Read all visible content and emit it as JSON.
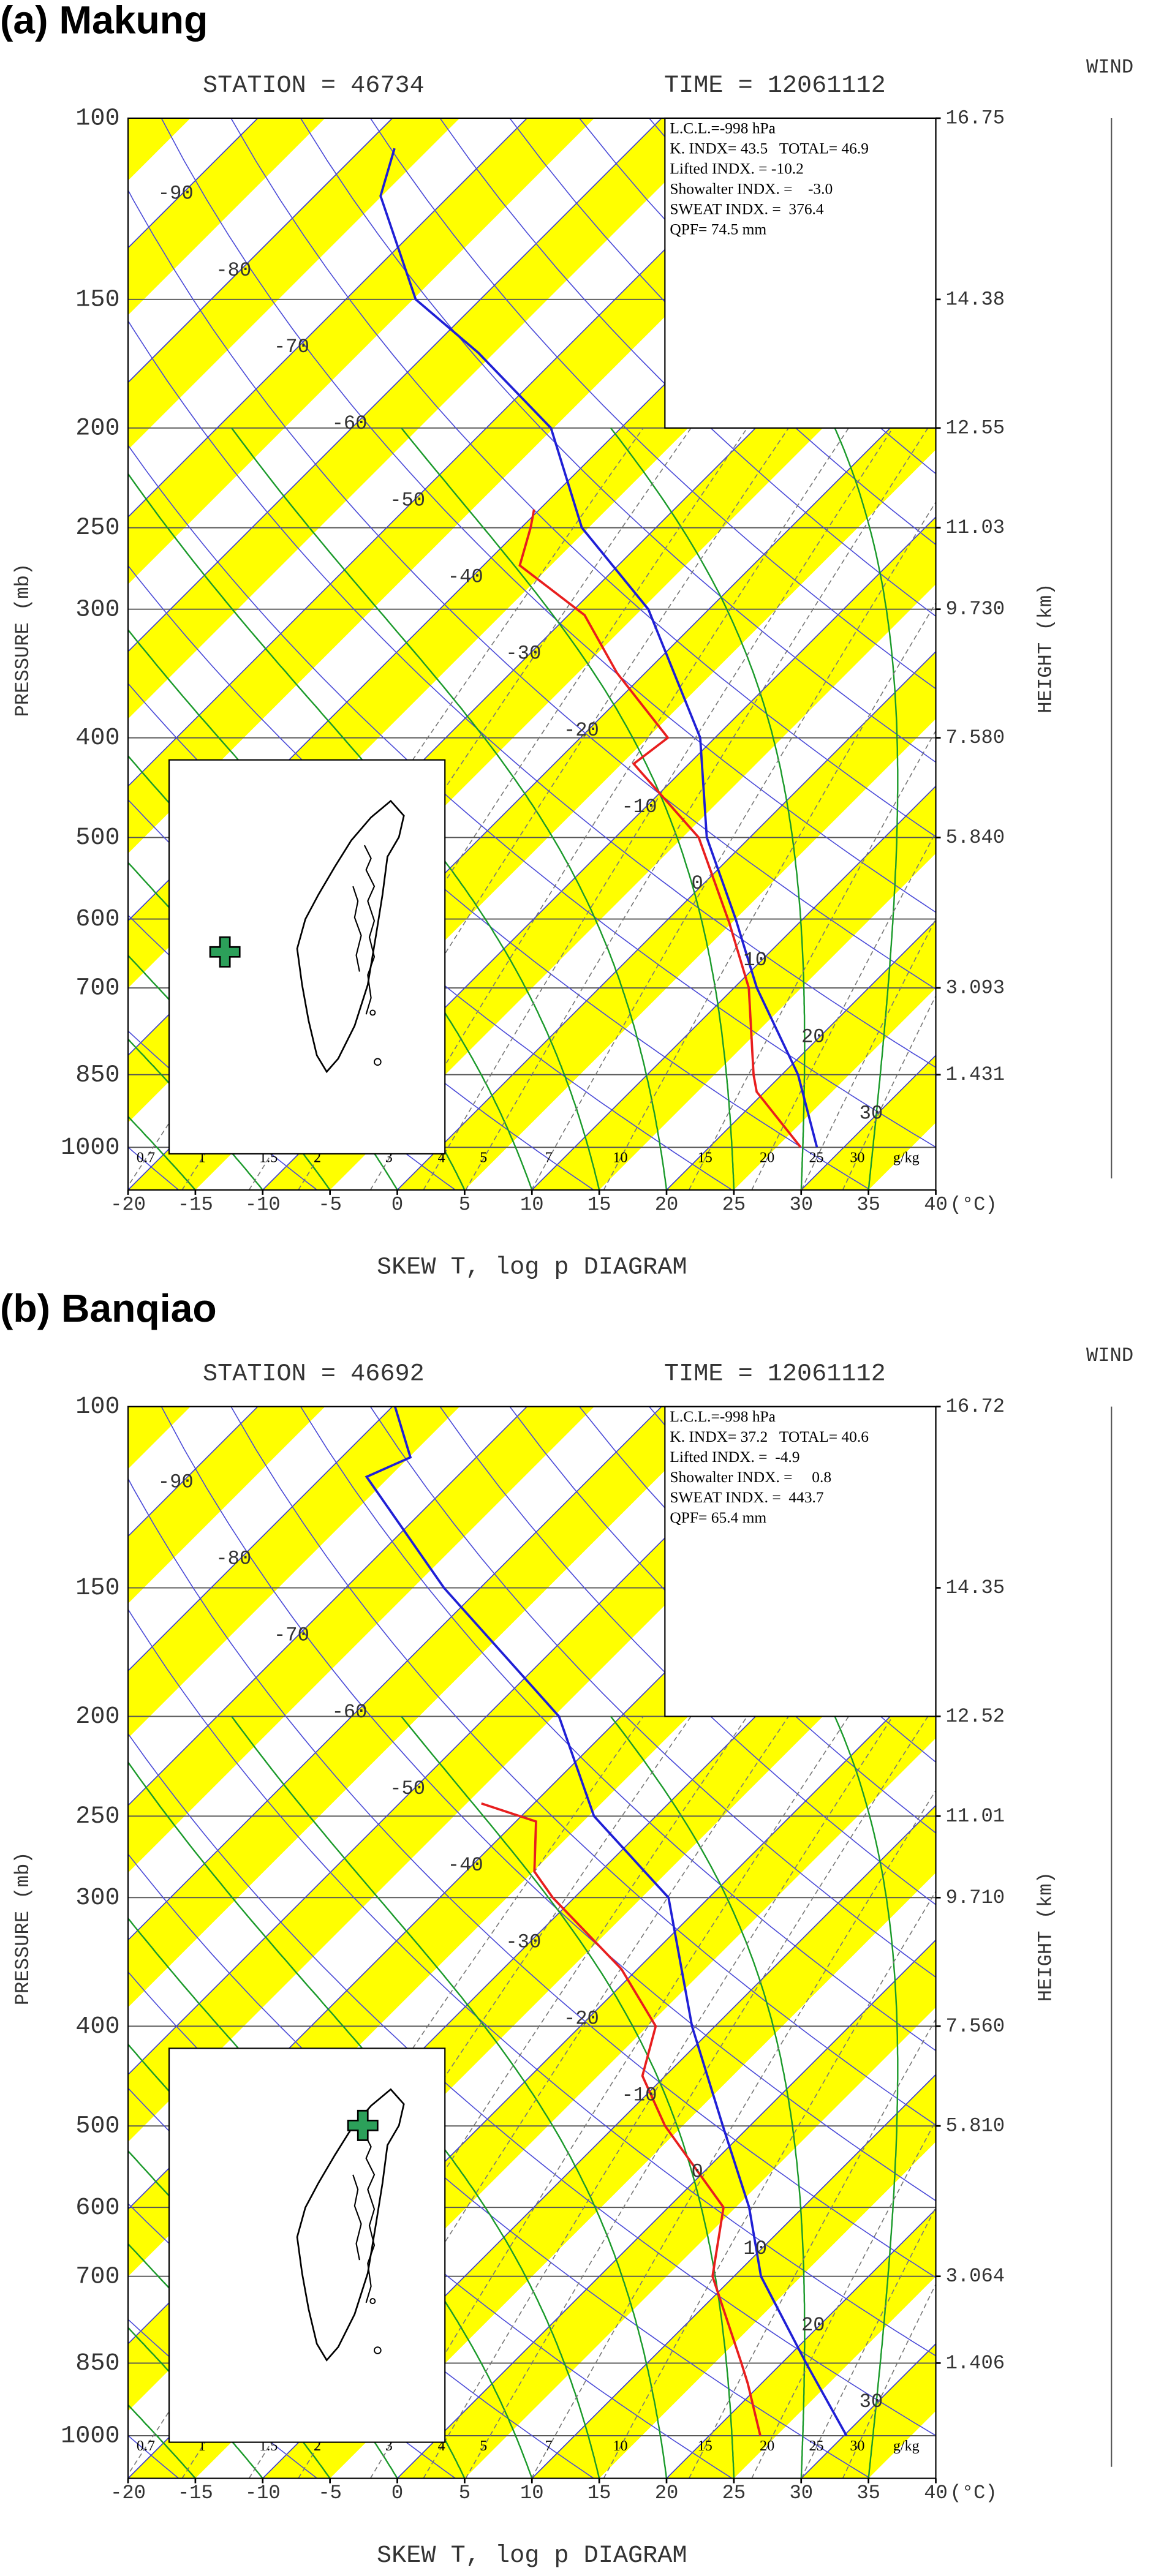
{
  "chart_data": [
    {
      "type": "skew-t",
      "title": "(a) Makung",
      "station_label": "STATION = 46734",
      "time_label": "TIME = 12061112",
      "xlabel": "SKEW T, log p DIAGRAM",
      "ylabel": "PRESSURE (mb)",
      "y2label": "HEIGHT (km)",
      "wind_label": "WIND",
      "x_unit": "(°C)",
      "mixing_ratio_unit": "g/kg",
      "log_y": true,
      "xlim": [
        -20,
        40
      ],
      "xticks": [
        -20,
        -15,
        -10,
        -5,
        0,
        5,
        10,
        15,
        20,
        25,
        30,
        35,
        40
      ],
      "ylim": [
        1100,
        100
      ],
      "yticks": [
        100,
        150,
        200,
        250,
        300,
        400,
        500,
        600,
        700,
        850,
        1000
      ],
      "height_ticks": [
        {
          "value": 100,
          "label": "16.75"
        },
        {
          "value": 150,
          "label": "14.38"
        },
        {
          "value": 200,
          "label": "12.55"
        },
        {
          "value": 250,
          "label": "11.03"
        },
        {
          "value": 300,
          "label": "9.730"
        },
        {
          "value": 400,
          "label": "7.580"
        },
        {
          "value": 500,
          "label": "5.840"
        },
        {
          "value": 700,
          "label": "3.093"
        },
        {
          "value": 850,
          "label": "1.431"
        }
      ],
      "isotherm_labels": [
        -90,
        -80,
        -70,
        -60,
        -50,
        -40,
        -30,
        -20,
        -10,
        0,
        10,
        20,
        30
      ],
      "mixing_ratios": [
        0.7,
        1,
        1.5,
        2,
        3,
        4,
        5,
        7,
        10,
        15,
        20,
        25,
        30
      ],
      "index_box": [
        "L.C.L.=-998 hPa",
        "K. INDX= 43.5   TOTAL= 46.9",
        "Lifted INDX. = -10.2",
        "Showalter INDX. =    -3.0",
        "SWEAT INDX. =  376.4",
        "QPF= 74.5 mm"
      ],
      "series": [
        {
          "color": "#1f1fd6",
          "pressure": [
            1000,
            850,
            700,
            600,
            500,
            400,
            300,
            250,
            200,
            169,
            150,
            119,
            107
          ],
          "values": [
            28.0,
            21.2,
            11.7,
            5.0,
            -3.2,
            -11.1,
            -24.5,
            -35.5,
            -45.2,
            -56.2,
            -64.8,
            -75.1,
            -77.6
          ]
        },
        {
          "color": "#e81e1e",
          "pressure": [
            1000,
            883,
            850,
            700,
            605,
            500,
            424,
            400,
            346,
            304,
            272,
            250,
            240
          ],
          "values": [
            26.8,
            19.4,
            17.9,
            11.1,
            4.8,
            -3.8,
            -14.1,
            -13.5,
            -22.1,
            -28.8,
            -37.3,
            -39.3,
            -40.4
          ]
        }
      ],
      "station_color": "#2ca05a"
    },
    {
      "type": "skew-t",
      "title": "(b) Banqiao",
      "station_label": "STATION = 46692",
      "time_label": "TIME = 12061112",
      "xlabel": "SKEW T, log p DIAGRAM",
      "ylabel": "PRESSURE (mb)",
      "y2label": "HEIGHT (km)",
      "wind_label": "WIND",
      "x_unit": "(°C)",
      "mixing_ratio_unit": "g/kg",
      "log_y": true,
      "xlim": [
        -20,
        40
      ],
      "xticks": [
        -20,
        -15,
        -10,
        -5,
        0,
        5,
        10,
        15,
        20,
        25,
        30,
        35,
        40
      ],
      "ylim": [
        1100,
        100
      ],
      "yticks": [
        100,
        150,
        200,
        250,
        300,
        400,
        500,
        600,
        700,
        850,
        1000
      ],
      "height_ticks": [
        {
          "value": 100,
          "label": "16.72"
        },
        {
          "value": 150,
          "label": "14.35"
        },
        {
          "value": 200,
          "label": "12.52"
        },
        {
          "value": 250,
          "label": "11.01"
        },
        {
          "value": 300,
          "label": "9.710"
        },
        {
          "value": 400,
          "label": "7.560"
        },
        {
          "value": 500,
          "label": "5.810"
        },
        {
          "value": 700,
          "label": "3.064"
        },
        {
          "value": 850,
          "label": "1.406"
        }
      ],
      "isotherm_labels": [
        -90,
        -80,
        -70,
        -60,
        -50,
        -40,
        -30,
        -20,
        -10,
        0,
        10,
        20,
        30
      ],
      "mixing_ratios": [
        0.7,
        1,
        1.5,
        2,
        3,
        4,
        5,
        7,
        10,
        15,
        20,
        25,
        30
      ],
      "index_box": [
        "L.C.L.=-998 hPa",
        "K. INDX= 37.2   TOTAL= 40.6",
        "Lifted INDX. =  -4.9",
        "Showalter INDX. =     0.8",
        "SWEAT INDX. =  443.7",
        "QPF= 65.4 mm"
      ],
      "series": [
        {
          "color": "#1f1fd6",
          "pressure": [
            1000,
            850,
            700,
            600,
            500,
            400,
            300,
            250,
            200,
            150,
            117,
            112,
            100
          ],
          "values": [
            30.2,
            21.8,
            12.0,
            6.0,
            -2.0,
            -11.7,
            -23.0,
            -34.6,
            -44.6,
            -62.7,
            -76.7,
            -74.9,
            -79.8
          ]
        },
        {
          "color": "#e81e1e",
          "pressure": [
            1000,
            890,
            850,
            700,
            600,
            500,
            447,
            400,
            352,
            300,
            283,
            253,
            243
          ],
          "values": [
            23.8,
            19.0,
            17.0,
            8.4,
            4.1,
            -6.3,
            -11.7,
            -14.4,
            -21.2,
            -31.6,
            -34.9,
            -38.5,
            -43.9
          ]
        }
      ],
      "station_color": "#2ca05a"
    }
  ]
}
